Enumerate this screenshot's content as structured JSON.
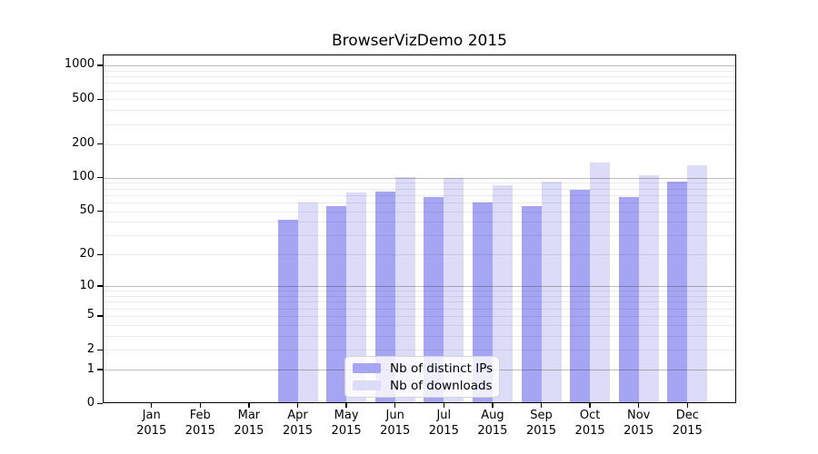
{
  "chart_data": {
    "type": "bar",
    "title": "BrowserVizDemo 2015",
    "x_tick_line2": "2015",
    "categories": [
      "Jan",
      "Feb",
      "Mar",
      "Apr",
      "May",
      "Jun",
      "Jul",
      "Aug",
      "Sep",
      "Oct",
      "Nov",
      "Dec"
    ],
    "series": [
      {
        "name": "Nb of distinct IPs",
        "color": "#a5a5f3",
        "values": [
          0,
          0,
          0,
          42,
          56,
          75,
          67,
          60,
          55,
          78,
          67,
          92
        ]
      },
      {
        "name": "Nb of downloads",
        "color": "#dcdcf8",
        "values": [
          0,
          0,
          0,
          60,
          73,
          101,
          100,
          86,
          92,
          137,
          105,
          130
        ]
      }
    ],
    "y_ticks": [
      0,
      1,
      2,
      5,
      10,
      20,
      50,
      100,
      200,
      500,
      1000
    ],
    "y_scale": "log10(1+x)",
    "ylim": [
      0,
      1236
    ],
    "grid": {
      "major_values": [
        1,
        10,
        100,
        1000
      ],
      "minor_decades": [
        1,
        10,
        100
      ],
      "major_color": "rgba(0,0,0,0.26)",
      "minor_color": "rgba(0,0,0,0.08)"
    },
    "legend_position": "bottom-center",
    "xlabel": "",
    "ylabel": ""
  },
  "colors": {
    "background": "#ffffff",
    "axis": "#000000",
    "bar_ips": "#a5a5f3",
    "bar_downloads": "#dcdcf8"
  }
}
